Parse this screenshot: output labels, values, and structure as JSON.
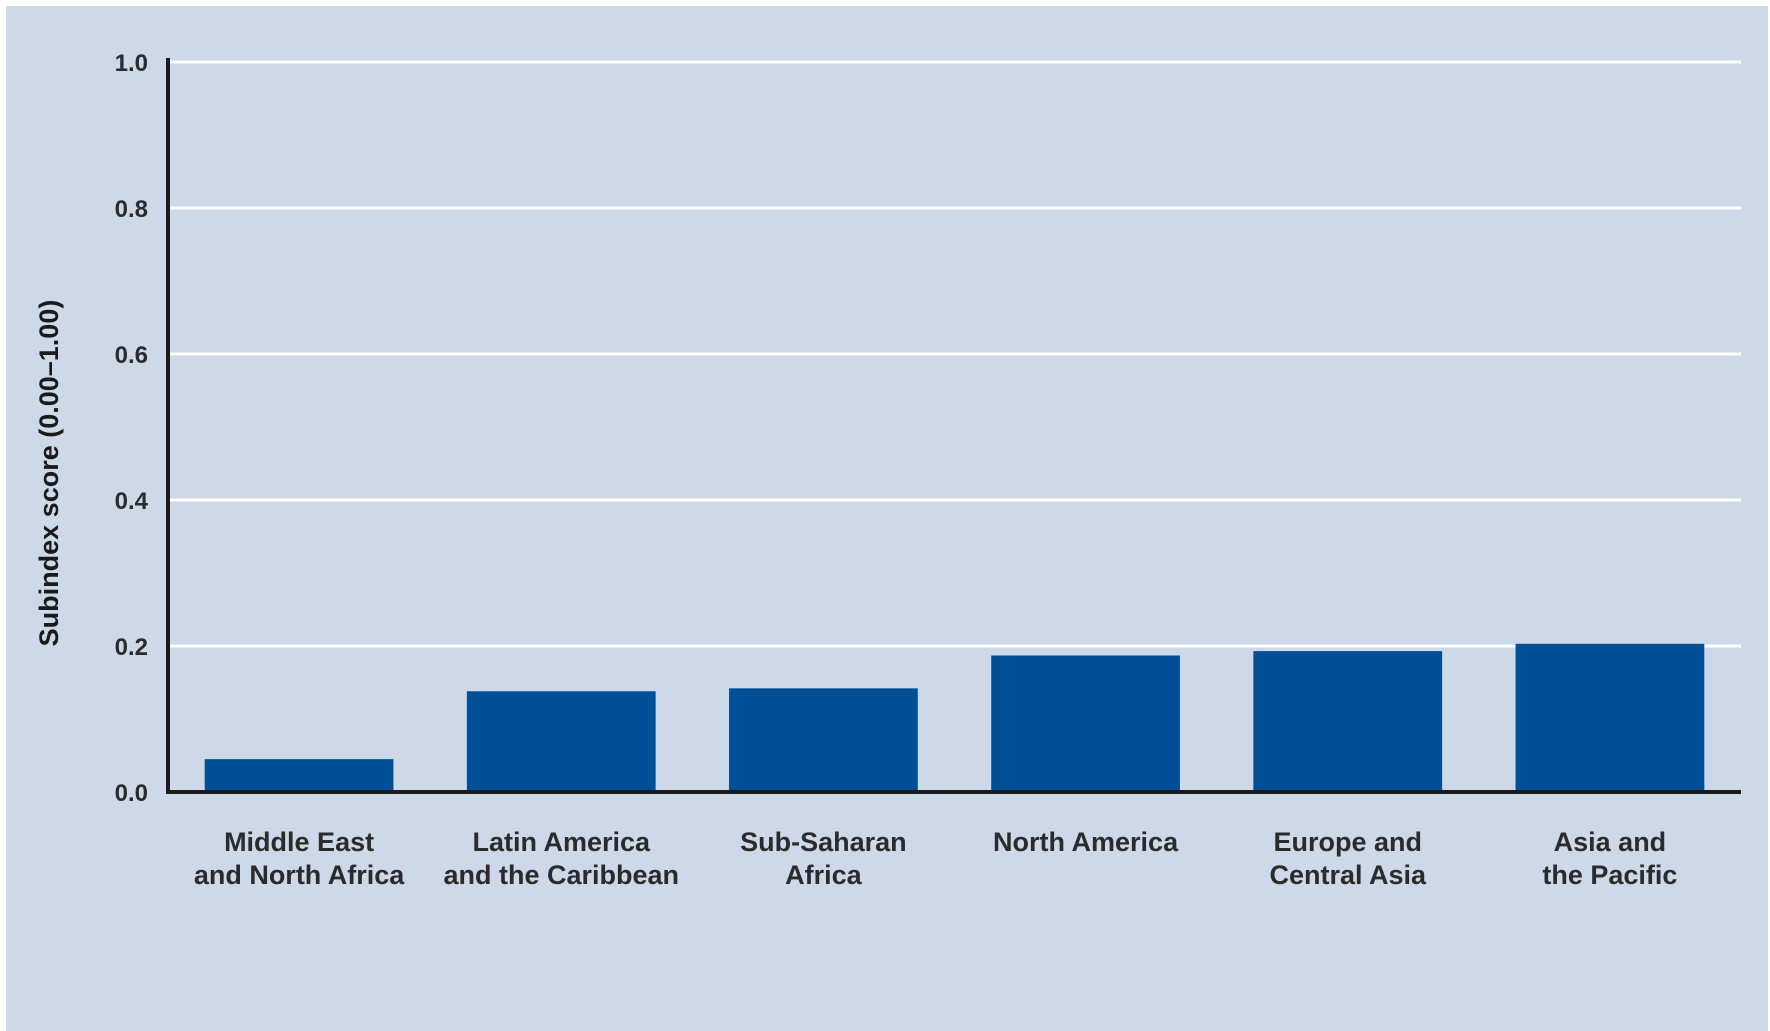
{
  "chart_data": {
    "type": "bar",
    "categories": [
      [
        "Middle East",
        "and North Africa"
      ],
      [
        "Latin America",
        "and the Caribbean"
      ],
      [
        "Sub-Saharan",
        "Africa"
      ],
      [
        "North America"
      ],
      [
        "Europe and",
        "Central Asia"
      ],
      [
        "Asia and",
        "the Pacific"
      ]
    ],
    "values": [
      0.045,
      0.138,
      0.142,
      0.187,
      0.193,
      0.203
    ],
    "title": "",
    "xlabel": "",
    "ylabel": "Subindex score (0.00–1.00)",
    "ylim": [
      0,
      1.0
    ],
    "yticks": [
      "0.0",
      "0.2",
      "0.4",
      "0.6",
      "0.8",
      "1.0"
    ],
    "ytick_values": [
      0,
      0.2,
      0.4,
      0.6,
      0.8,
      1.0
    ],
    "grid": true,
    "legend": "none",
    "colors": {
      "bar": "#004f97",
      "background": "#cdd9e8",
      "gridline": "#ffffff",
      "axis": "#1a1a1a"
    }
  }
}
